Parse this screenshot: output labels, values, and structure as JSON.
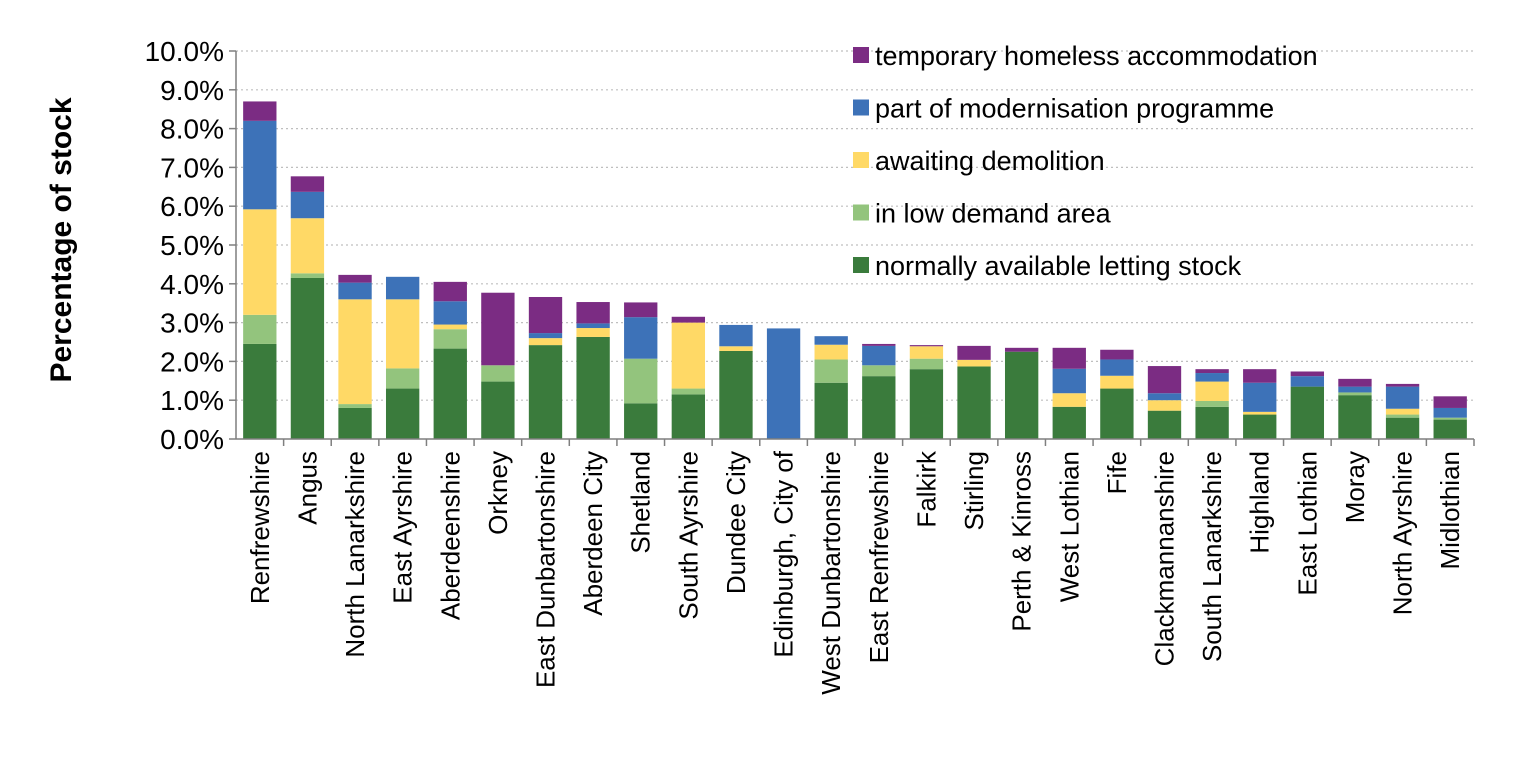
{
  "chart_data": {
    "type": "bar",
    "stacked": true,
    "title": "",
    "xlabel": "",
    "ylabel": "Percentage of stock",
    "ylim": [
      0,
      10
    ],
    "yticks": [
      "0.0%",
      "1.0%",
      "2.0%",
      "3.0%",
      "4.0%",
      "5.0%",
      "6.0%",
      "7.0%",
      "8.0%",
      "9.0%",
      "10.0%"
    ],
    "grid": true,
    "legend_position": "top-right",
    "categories": [
      "Renfrewshire",
      "Angus",
      "North Lanarkshire",
      "East Ayrshire",
      "Aberdeenshire",
      "Orkney",
      "East Dunbartonshire",
      "Aberdeen City",
      "Shetland",
      "South Ayrshire",
      "Dundee City",
      "Edinburgh, City of",
      "West Dunbartonshire",
      "East Renfrewshire",
      "Falkirk",
      "Stirling",
      "Perth & Kinross",
      "West Lothian",
      "Fife",
      "Clackmannanshire",
      "South Lanarkshire",
      "Highland",
      "East Lothian",
      "Moray",
      "North Ayrshire",
      "Midlothian"
    ],
    "series": [
      {
        "name": "normally available letting stock",
        "color": "#3a7b3c",
        "values": [
          2.45,
          4.15,
          0.8,
          1.3,
          2.33,
          1.48,
          2.42,
          2.63,
          0.92,
          1.15,
          2.27,
          0.0,
          1.45,
          1.62,
          1.8,
          1.87,
          2.25,
          0.83,
          1.3,
          0.73,
          0.83,
          0.63,
          1.35,
          1.13,
          0.55,
          0.5
        ]
      },
      {
        "name": "in low demand area",
        "color": "#93c47d",
        "values": [
          0.75,
          0.12,
          0.1,
          0.52,
          0.5,
          0.42,
          0.0,
          0.0,
          1.15,
          0.15,
          0.0,
          0.0,
          0.6,
          0.28,
          0.27,
          0.0,
          0.0,
          0.0,
          0.0,
          0.0,
          0.15,
          0.0,
          0.0,
          0.07,
          0.08,
          0.05
        ]
      },
      {
        "name": "awaiting demolition",
        "color": "#ffd966",
        "values": [
          2.72,
          1.42,
          2.7,
          1.78,
          0.12,
          0.0,
          0.18,
          0.23,
          0.0,
          1.7,
          0.12,
          0.0,
          0.38,
          0.0,
          0.32,
          0.17,
          0.0,
          0.35,
          0.33,
          0.27,
          0.5,
          0.07,
          0.0,
          0.0,
          0.15,
          0.0
        ]
      },
      {
        "name": "part of modernisation programme",
        "color": "#3d72b8",
        "values": [
          2.28,
          0.68,
          0.43,
          0.58,
          0.6,
          0.0,
          0.13,
          0.12,
          1.07,
          0.0,
          0.55,
          2.85,
          0.22,
          0.5,
          0.0,
          0.0,
          0.0,
          0.63,
          0.42,
          0.18,
          0.22,
          0.75,
          0.27,
          0.15,
          0.57,
          0.25
        ]
      },
      {
        "name": "temporary homeless accommodation",
        "color": "#7b2c83",
        "values": [
          0.5,
          0.4,
          0.2,
          0.0,
          0.5,
          1.87,
          0.93,
          0.55,
          0.38,
          0.15,
          0.0,
          0.0,
          0.0,
          0.05,
          0.03,
          0.36,
          0.1,
          0.54,
          0.25,
          0.7,
          0.1,
          0.35,
          0.12,
          0.2,
          0.07,
          0.3
        ]
      }
    ],
    "legend_order": [
      "temporary homeless accommodation",
      "part of modernisation programme",
      "awaiting demolition",
      "in low demand area",
      "normally available letting stock"
    ]
  }
}
